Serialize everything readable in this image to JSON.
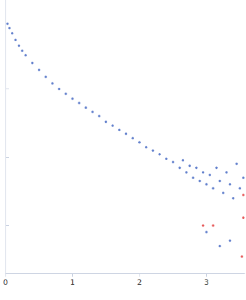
{
  "chart_data": {
    "type": "scatter",
    "log": "y",
    "grid": false,
    "tick_labels": "x",
    "marker": "circle",
    "xlim": [
      0,
      3.57
    ],
    "xticks": [
      0,
      1,
      2,
      3
    ],
    "ylim": [
      0.002,
      20
    ],
    "yticks": [
      0.01,
      0.1,
      1
    ],
    "series": [
      {
        "color": "#3a5fbf",
        "x": [
          0.03,
          0.06,
          0.1,
          0.15,
          0.2,
          0.25,
          0.3,
          0.4,
          0.5,
          0.6,
          0.7,
          0.8,
          0.9,
          1.0,
          1.1,
          1.2,
          1.3,
          1.4,
          1.5,
          1.6,
          1.7,
          1.8,
          1.9,
          2.0,
          2.1,
          2.2,
          2.3,
          2.4,
          2.5,
          2.6,
          2.65,
          2.7,
          2.75,
          2.8,
          2.85,
          2.9,
          2.95,
          3.0,
          3.05,
          3.1,
          3.15,
          3.2,
          3.25,
          3.3,
          3.35,
          3.4,
          3.45,
          3.5,
          3.55,
          3.0,
          3.2,
          3.35
        ],
        "values": [
          9,
          7.8,
          6.5,
          5.2,
          4.3,
          3.6,
          3.1,
          2.4,
          1.9,
          1.5,
          1.2,
          1.0,
          0.85,
          0.72,
          0.62,
          0.53,
          0.46,
          0.4,
          0.33,
          0.29,
          0.25,
          0.22,
          0.19,
          0.165,
          0.14,
          0.125,
          0.11,
          0.095,
          0.085,
          0.07,
          0.09,
          0.06,
          0.075,
          0.05,
          0.07,
          0.045,
          0.06,
          0.04,
          0.055,
          0.035,
          0.07,
          0.045,
          0.03,
          0.06,
          0.04,
          0.025,
          0.08,
          0.035,
          0.05,
          0.008,
          0.005,
          0.006
        ]
      },
      {
        "color": "#e03030",
        "x": [
          2.95,
          3.1,
          3.55,
          3.55,
          3.53
        ],
        "values": [
          0.01,
          0.01,
          0.028,
          0.013,
          0.0035
        ]
      }
    ]
  }
}
